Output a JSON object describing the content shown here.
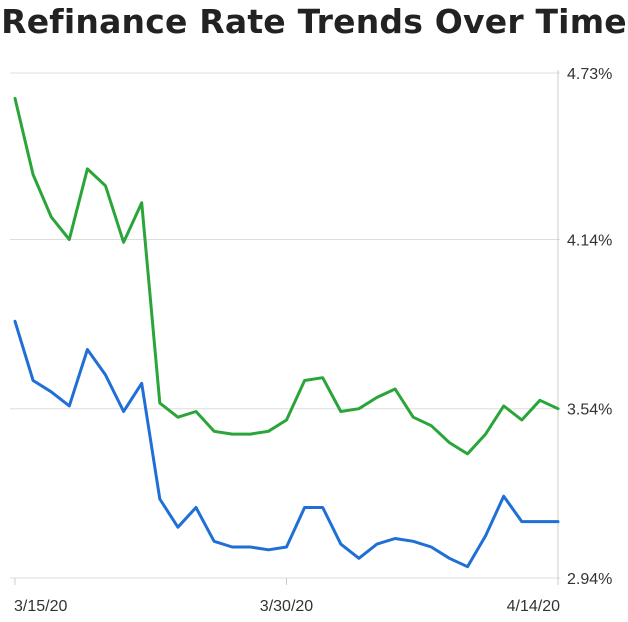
{
  "chart_data": {
    "type": "line",
    "title": "Refinance Rate Trends Over Time",
    "xlabel": "",
    "ylabel": "",
    "ylim": [
      2.94,
      4.73
    ],
    "yticks": [
      {
        "value": 4.73,
        "label": "4.73%"
      },
      {
        "value": 4.14,
        "label": "4.14%"
      },
      {
        "value": 3.54,
        "label": "3.54%"
      },
      {
        "value": 2.94,
        "label": "2.94%"
      }
    ],
    "xticks": [
      {
        "index": 0,
        "label": "3/15/20"
      },
      {
        "index": 15,
        "label": "3/30/20"
      },
      {
        "index": 30,
        "label": "4/14/20"
      }
    ],
    "x": [
      "3/15/20",
      "3/16/20",
      "3/17/20",
      "3/18/20",
      "3/19/20",
      "3/20/20",
      "3/21/20",
      "3/22/20",
      "3/23/20",
      "3/24/20",
      "3/25/20",
      "3/26/20",
      "3/27/20",
      "3/28/20",
      "3/29/20",
      "3/30/20",
      "3/31/20",
      "4/1/20",
      "4/2/20",
      "4/3/20",
      "4/4/20",
      "4/5/20",
      "4/6/20",
      "4/7/20",
      "4/8/20",
      "4/9/20",
      "4/10/20",
      "4/11/20",
      "4/12/20",
      "4/13/20",
      "4/14/20"
    ],
    "series": [
      {
        "color": "#2aa53a",
        "values": [
          4.64,
          4.37,
          4.22,
          4.14,
          4.39,
          4.33,
          4.13,
          4.27,
          3.56,
          3.51,
          3.53,
          3.46,
          3.45,
          3.45,
          3.46,
          3.5,
          3.64,
          3.65,
          3.53,
          3.54,
          3.58,
          3.61,
          3.51,
          3.48,
          3.42,
          3.38,
          3.45,
          3.55,
          3.5,
          3.57,
          3.54
        ]
      },
      {
        "color": "#1f6fd6",
        "values": [
          3.85,
          3.64,
          3.6,
          3.55,
          3.75,
          3.66,
          3.53,
          3.63,
          3.22,
          3.12,
          3.19,
          3.07,
          3.05,
          3.05,
          3.04,
          3.05,
          3.19,
          3.19,
          3.06,
          3.01,
          3.06,
          3.08,
          3.07,
          3.05,
          3.01,
          2.98,
          3.09,
          3.23,
          3.14,
          3.14,
          3.14
        ]
      }
    ],
    "grid": true,
    "legend": "none"
  }
}
